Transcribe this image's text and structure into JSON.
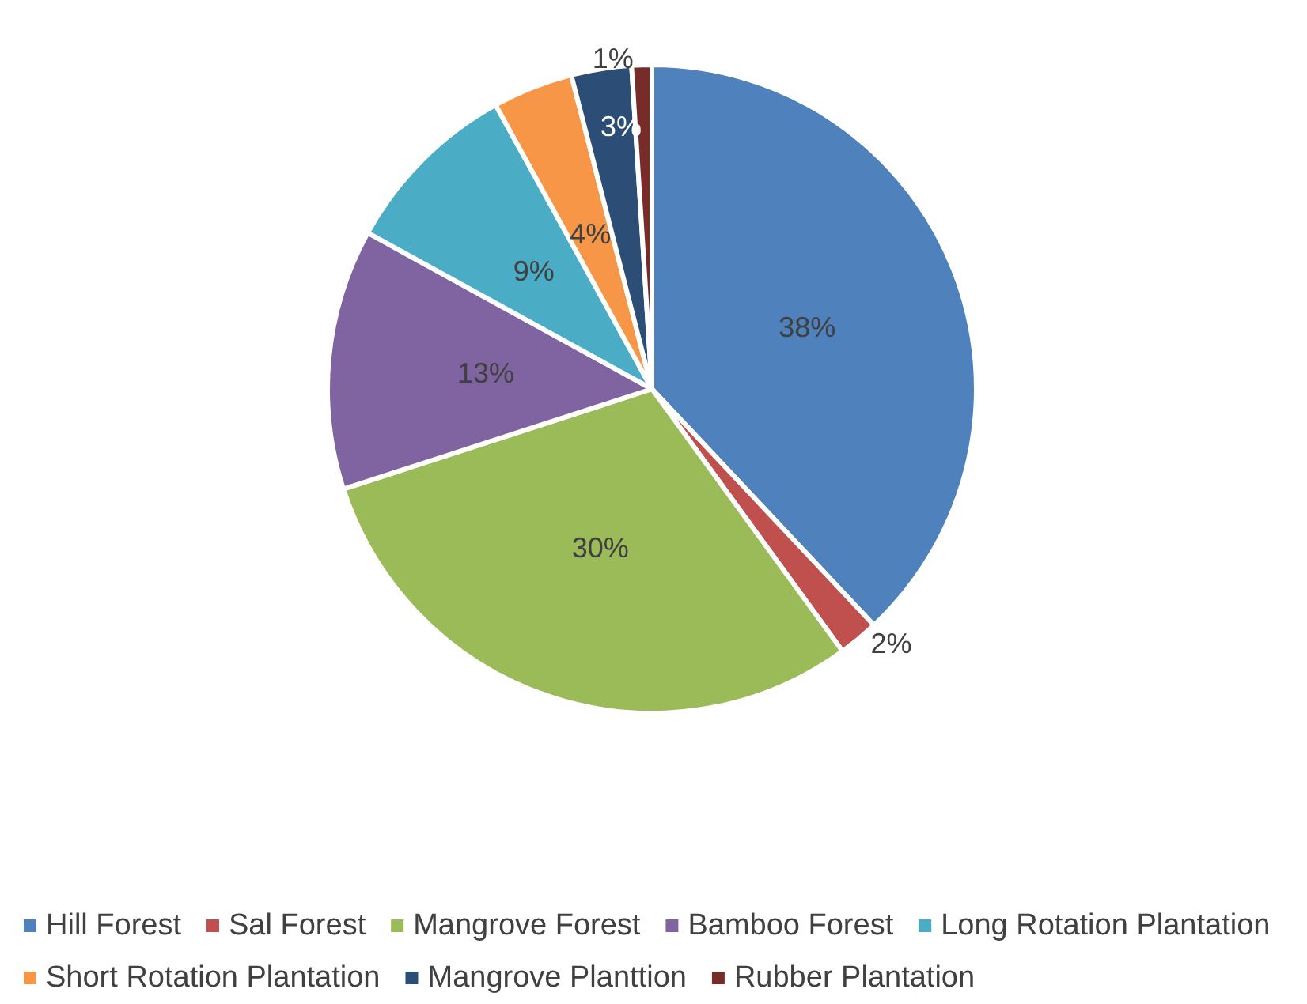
{
  "chart_data": {
    "type": "pie",
    "categories": [
      "Hill Forest",
      "Sal Forest",
      "Mangrove Forest",
      "Bamboo Forest",
      "Long Rotation Plantation",
      "Short Rotation Plantation",
      "Mangrove Planttion",
      "Rubber Plantation"
    ],
    "values": [
      38,
      2,
      30,
      13,
      9,
      4,
      3,
      1
    ],
    "colors": [
      "#4f81bd",
      "#c0504d",
      "#9bbb59",
      "#8064a2",
      "#4bacc6",
      "#f79646",
      "#2c4d75",
      "#772c2a"
    ],
    "value_labels": [
      "38%",
      "2%",
      "30%",
      "13%",
      "9%",
      "4%",
      "3%",
      "1%"
    ],
    "legend": "bottom"
  }
}
